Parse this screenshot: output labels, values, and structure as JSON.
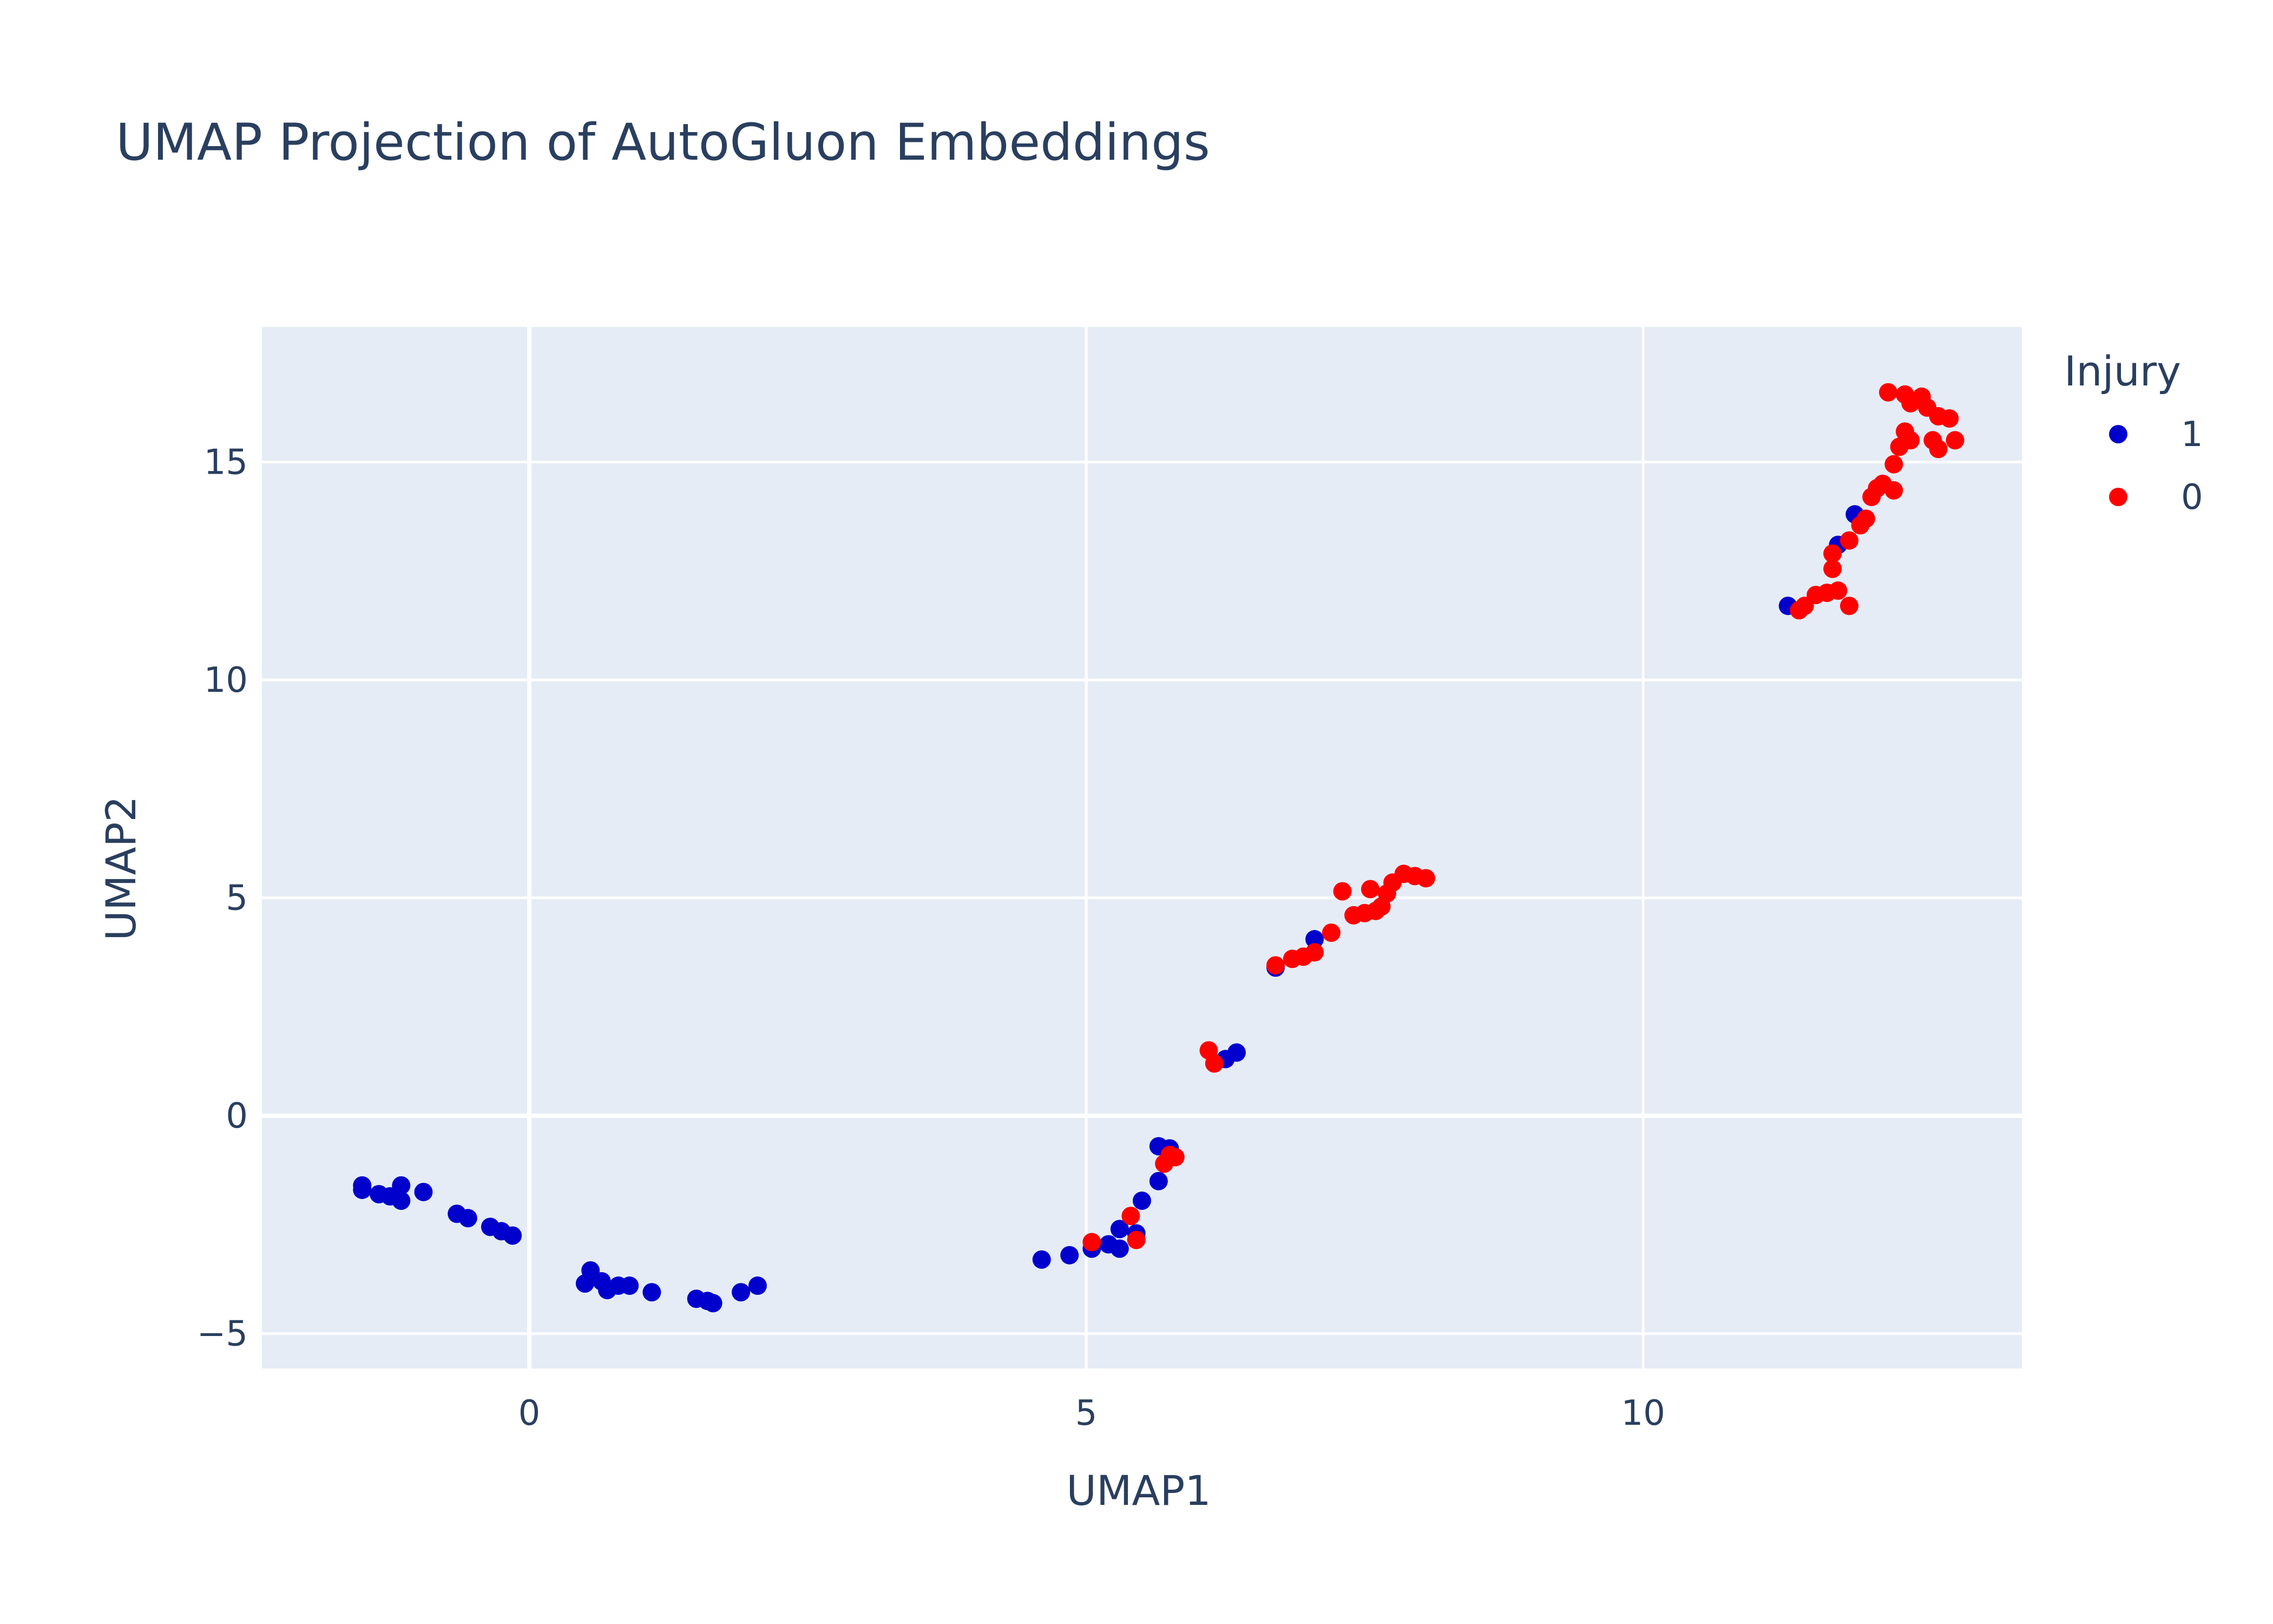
{
  "chart_data": {
    "type": "scatter",
    "title": "UMAP Projection of AutoGluon Embeddings",
    "xlabel": "UMAP1",
    "ylabel": "UMAP2",
    "xlim": [
      -2.4,
      13.4
    ],
    "ylim": [
      -5.8,
      18.1
    ],
    "x_ticks": [
      0,
      5,
      10
    ],
    "y_ticks": [
      -5,
      0,
      5,
      10,
      15
    ],
    "x_tick_labels": [
      "0",
      "5",
      "10"
    ],
    "y_tick_labels": [
      "−5",
      "0",
      "5",
      "10",
      "15"
    ],
    "grid": true,
    "plot_background": "#e5ecf6",
    "legend": {
      "title": "Injury",
      "position": "right"
    },
    "series": [
      {
        "name": "1",
        "color": "#0000cd",
        "points": [
          [
            -1.5,
            -1.6
          ],
          [
            -1.5,
            -1.7
          ],
          [
            -1.35,
            -1.8
          ],
          [
            -1.25,
            -1.85
          ],
          [
            -1.15,
            -1.6
          ],
          [
            -1.15,
            -1.95
          ],
          [
            -0.95,
            -1.75
          ],
          [
            -0.65,
            -2.25
          ],
          [
            -0.55,
            -2.35
          ],
          [
            -0.35,
            -2.55
          ],
          [
            -0.25,
            -2.65
          ],
          [
            -0.15,
            -2.75
          ],
          [
            0.5,
            -3.85
          ],
          [
            0.55,
            -3.55
          ],
          [
            0.65,
            -3.8
          ],
          [
            0.7,
            -4.0
          ],
          [
            0.8,
            -3.9
          ],
          [
            0.9,
            -3.9
          ],
          [
            1.1,
            -4.05
          ],
          [
            1.5,
            -4.2
          ],
          [
            1.6,
            -4.25
          ],
          [
            1.65,
            -4.3
          ],
          [
            1.9,
            -4.05
          ],
          [
            2.05,
            -3.9
          ],
          [
            4.6,
            -3.3
          ],
          [
            4.85,
            -3.2
          ],
          [
            5.05,
            -3.05
          ],
          [
            5.2,
            -2.95
          ],
          [
            5.3,
            -2.6
          ],
          [
            5.3,
            -3.05
          ],
          [
            5.45,
            -2.7
          ],
          [
            5.5,
            -1.95
          ],
          [
            5.65,
            -1.5
          ],
          [
            5.65,
            -0.7
          ],
          [
            5.75,
            -0.75
          ],
          [
            6.25,
            1.3
          ],
          [
            6.35,
            1.45
          ],
          [
            6.7,
            3.4
          ],
          [
            7.05,
            4.05
          ],
          [
            11.3,
            11.7
          ],
          [
            11.75,
            13.1
          ],
          [
            11.9,
            13.8
          ]
        ]
      },
      {
        "name": "0",
        "color": "#ff0000",
        "points": [
          [
            5.05,
            -2.9
          ],
          [
            5.4,
            -2.3
          ],
          [
            5.45,
            -2.85
          ],
          [
            5.7,
            -1.1
          ],
          [
            5.75,
            -0.9
          ],
          [
            5.8,
            -0.95
          ],
          [
            6.1,
            1.5
          ],
          [
            6.15,
            1.2
          ],
          [
            6.7,
            3.45
          ],
          [
            6.85,
            3.6
          ],
          [
            6.95,
            3.65
          ],
          [
            7.05,
            3.75
          ],
          [
            7.2,
            4.2
          ],
          [
            7.3,
            5.15
          ],
          [
            7.4,
            4.6
          ],
          [
            7.5,
            4.65
          ],
          [
            7.55,
            5.2
          ],
          [
            7.6,
            4.7
          ],
          [
            7.65,
            4.8
          ],
          [
            7.7,
            5.1
          ],
          [
            7.75,
            5.35
          ],
          [
            7.85,
            5.55
          ],
          [
            7.95,
            5.5
          ],
          [
            8.05,
            5.45
          ],
          [
            11.4,
            11.6
          ],
          [
            11.45,
            11.7
          ],
          [
            11.55,
            11.95
          ],
          [
            11.65,
            12.0
          ],
          [
            11.7,
            12.9
          ],
          [
            11.7,
            12.55
          ],
          [
            11.75,
            12.05
          ],
          [
            11.85,
            13.2
          ],
          [
            11.85,
            11.7
          ],
          [
            11.95,
            13.55
          ],
          [
            12.0,
            13.7
          ],
          [
            12.05,
            14.2
          ],
          [
            12.1,
            14.4
          ],
          [
            12.15,
            14.5
          ],
          [
            12.25,
            14.35
          ],
          [
            12.25,
            14.95
          ],
          [
            12.3,
            15.35
          ],
          [
            12.35,
            15.7
          ],
          [
            12.4,
            15.5
          ],
          [
            12.2,
            16.6
          ],
          [
            12.35,
            16.55
          ],
          [
            12.4,
            16.35
          ],
          [
            12.5,
            16.5
          ],
          [
            12.55,
            16.25
          ],
          [
            12.6,
            15.5
          ],
          [
            12.65,
            15.3
          ],
          [
            12.65,
            16.05
          ],
          [
            12.75,
            16.0
          ],
          [
            12.8,
            15.5
          ]
        ]
      }
    ]
  }
}
